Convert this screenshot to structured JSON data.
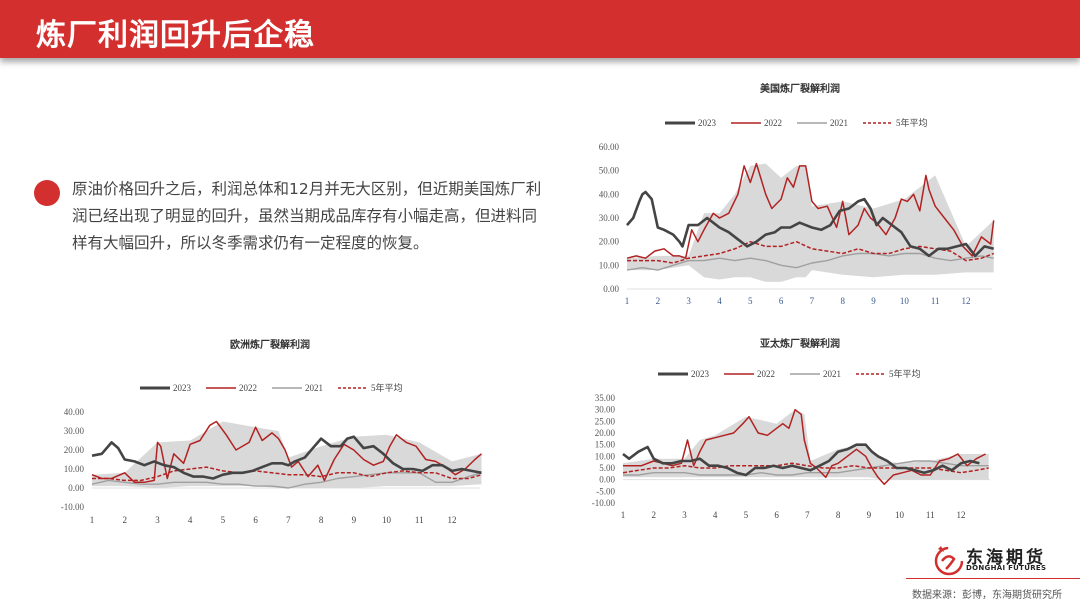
{
  "header": {
    "title": "炼厂利润回升后企稳"
  },
  "bullet": {
    "text": "原油价格回升之后，利润总体和12月并无大区别，但近期美国炼厂利润已经出现了明显的回升，虽然当期成品库存有小幅走高，但进料同样有大幅回升，所以冬季需求仍有一定程度的恢复。"
  },
  "colors": {
    "brand_red": "#d32f2f",
    "series_2023": "#444444",
    "series_2022": "#b22222",
    "series_2021": "#a0a0a0",
    "series_5yr_avg": "#b22222",
    "range_fill": "#d9d9d9"
  },
  "legend": {
    "s2023": "2023",
    "s2022": "2022",
    "s2021": "2021",
    "avg": "5年平均"
  },
  "footer": {
    "logo_cn": "东海期货",
    "logo_en": "DONGHAI FUTURES",
    "source": "数据来源：彭博，东海期货研究所"
  },
  "chart_data": [
    {
      "id": "us",
      "type": "line",
      "title": "美国炼厂裂解利润",
      "xlabel": "",
      "ylabel": "",
      "x_ticks": [
        "1",
        "2",
        "3",
        "4",
        "5",
        "6",
        "7",
        "8",
        "9",
        "10",
        "11",
        "12"
      ],
      "y_ticks": [
        "0.00",
        "10.00",
        "20.00",
        "30.00",
        "40.00",
        "50.00",
        "60.00"
      ],
      "ylim": [
        0,
        60
      ],
      "grid": false,
      "legend_position": "top",
      "series": [
        {
          "name": "2023",
          "x": [
            1,
            1.2,
            1.4,
            1.5,
            1.6,
            1.8,
            2.0,
            2.2,
            2.5,
            2.7,
            2.8,
            3.0,
            3.3,
            3.6,
            3.8,
            4.0,
            4.3,
            4.6,
            4.9,
            5.2,
            5.5,
            5.8,
            6.0,
            6.3,
            6.6,
            6.8,
            7.0,
            7.3,
            7.6,
            7.9,
            8.2,
            8.5,
            8.7,
            8.9,
            9.1,
            9.3,
            9.6,
            9.9,
            10.2,
            10.5,
            10.8,
            11.1,
            11.4,
            11.7,
            12.0,
            12.3,
            12.6,
            12.9
          ],
          "values": [
            27,
            30,
            37,
            40,
            41,
            38,
            26,
            25,
            23,
            20,
            18,
            27,
            27,
            30,
            28,
            26,
            24,
            21,
            18,
            20,
            23,
            24,
            26,
            26,
            28,
            27,
            26,
            25,
            27,
            33,
            34,
            37,
            38,
            34,
            27,
            30,
            27,
            24,
            18,
            17,
            14,
            17,
            17,
            18,
            19,
            14,
            18,
            17
          ]
        },
        {
          "name": "2022",
          "x": [
            1,
            1.3,
            1.6,
            1.9,
            2.2,
            2.5,
            2.7,
            2.9,
            3.1,
            3.3,
            3.5,
            3.8,
            4.0,
            4.3,
            4.6,
            4.8,
            5.0,
            5.2,
            5.5,
            5.7,
            6.0,
            6.2,
            6.4,
            6.6,
            6.8,
            7.0,
            7.2,
            7.5,
            7.8,
            8.0,
            8.2,
            8.5,
            8.7,
            8.9,
            9.1,
            9.4,
            9.7,
            9.9,
            10.1,
            10.3,
            10.5,
            10.7,
            10.8,
            11.0,
            11.3,
            11.6,
            11.9,
            12.2,
            12.5,
            12.8,
            12.9
          ],
          "values": [
            13,
            14,
            13,
            16,
            17,
            14,
            14,
            13,
            25,
            20,
            25,
            32,
            30,
            32,
            40,
            52,
            45,
            53,
            40,
            34,
            38,
            47,
            43,
            52,
            52,
            37,
            34,
            35,
            26,
            37,
            23,
            27,
            34,
            30,
            28,
            23,
            30,
            38,
            37,
            40,
            33,
            48,
            42,
            35,
            30,
            25,
            18,
            14,
            22,
            19,
            29
          ]
        },
        {
          "name": "2021",
          "x": [
            1,
            1.5,
            2,
            2.5,
            3,
            3.5,
            4,
            4.5,
            5,
            5.5,
            6,
            6.5,
            7,
            7.5,
            8,
            8.5,
            9,
            9.5,
            10,
            10.5,
            11,
            11.5,
            12,
            12.5,
            12.9
          ],
          "values": [
            8,
            9,
            8,
            10,
            12,
            12,
            13,
            12,
            13,
            12,
            10,
            9,
            11,
            12,
            14,
            15,
            15,
            14,
            15,
            15,
            13,
            12,
            13,
            14,
            13
          ]
        },
        {
          "name": "5年平均",
          "x": [
            1,
            1.5,
            2,
            2.5,
            3,
            3.5,
            4,
            4.5,
            5,
            5.5,
            6,
            6.5,
            7,
            7.5,
            8,
            8.5,
            9,
            9.5,
            10,
            10.5,
            11,
            11.5,
            12,
            12.5,
            12.9
          ],
          "values": [
            12,
            12,
            12,
            11,
            13,
            14,
            15,
            17,
            20,
            18,
            18,
            20,
            17,
            16,
            15,
            17,
            15,
            15,
            17,
            18,
            17,
            16,
            12,
            13,
            15
          ]
        }
      ],
      "range_band": {
        "x": [
          1,
          2,
          3,
          3.5,
          4,
          4.5,
          5,
          5.5,
          6,
          6.5,
          6.8,
          7,
          8,
          9,
          10,
          11,
          12,
          12.9
        ],
        "low": [
          8,
          8,
          10,
          5,
          4,
          5,
          5,
          3,
          3,
          5,
          5,
          8,
          6,
          5,
          6,
          6,
          7,
          7
        ],
        "high": [
          13,
          14,
          14,
          32,
          32,
          40,
          52,
          53,
          47,
          52,
          52,
          35,
          37,
          34,
          38,
          48,
          18,
          29
        ]
      }
    },
    {
      "id": "eu",
      "type": "line",
      "title": "欧洲炼厂裂解利润",
      "xlabel": "",
      "ylabel": "",
      "x_ticks": [
        "1",
        "2",
        "3",
        "4",
        "5",
        "6",
        "7",
        "8",
        "9",
        "10",
        "11",
        "12"
      ],
      "y_ticks": [
        "-10.00",
        "0.00",
        "10.00",
        "20.00",
        "30.00",
        "40.00"
      ],
      "ylim": [
        -10,
        40
      ],
      "grid": false,
      "legend_position": "top",
      "series": [
        {
          "name": "2023",
          "x": [
            1,
            1.3,
            1.6,
            1.8,
            2.0,
            2.3,
            2.6,
            2.9,
            3.2,
            3.5,
            3.8,
            4.1,
            4.4,
            4.7,
            5.0,
            5.3,
            5.6,
            5.9,
            6.2,
            6.5,
            6.8,
            7.0,
            7.2,
            7.5,
            7.8,
            8.0,
            8.3,
            8.6,
            8.8,
            9.0,
            9.3,
            9.6,
            9.9,
            10.2,
            10.5,
            10.8,
            11.1,
            11.4,
            11.7,
            12.0,
            12.3,
            12.6,
            12.9
          ],
          "values": [
            17,
            18,
            24,
            21,
            15,
            14,
            12,
            14,
            12,
            11,
            8,
            6,
            6,
            5,
            7,
            8,
            8,
            9,
            11,
            13,
            13,
            12,
            14,
            16,
            22,
            26,
            22,
            22,
            26,
            27,
            21,
            22,
            18,
            13,
            10,
            10,
            9,
            12,
            12,
            9,
            10,
            9,
            8
          ]
        },
        {
          "name": "2022",
          "x": [
            1,
            1.3,
            1.6,
            2.0,
            2.3,
            2.6,
            2.9,
            3.0,
            3.1,
            3.3,
            3.5,
            3.8,
            4.0,
            4.3,
            4.6,
            4.8,
            5.1,
            5.4,
            5.8,
            6.0,
            6.2,
            6.5,
            6.7,
            6.9,
            7.1,
            7.3,
            7.6,
            7.9,
            8.1,
            8.4,
            8.7,
            9.0,
            9.3,
            9.6,
            9.9,
            10.1,
            10.3,
            10.6,
            10.9,
            11.2,
            11.5,
            11.8,
            12.1,
            12.4,
            12.7,
            12.9
          ],
          "values": [
            7,
            5,
            5,
            8,
            3,
            3,
            4,
            24,
            22,
            5,
            18,
            13,
            23,
            25,
            33,
            35,
            28,
            20,
            24,
            32,
            25,
            29,
            26,
            20,
            11,
            14,
            6,
            12,
            4,
            15,
            23,
            20,
            15,
            12,
            14,
            22,
            28,
            24,
            22,
            15,
            14,
            11,
            7,
            10,
            15,
            18
          ]
        },
        {
          "name": "2021",
          "x": [
            1,
            1.5,
            2,
            2.5,
            3,
            3.5,
            4,
            4.5,
            5,
            5.5,
            6,
            6.5,
            7,
            7.5,
            8,
            8.5,
            9,
            9.5,
            10,
            10.5,
            11,
            11.5,
            12,
            12.5,
            12.9
          ],
          "values": [
            2,
            4,
            3,
            2,
            2,
            3,
            3,
            3,
            2,
            2,
            1,
            1,
            0,
            2,
            3,
            5,
            6,
            7,
            8,
            8,
            8,
            3,
            3,
            6,
            8
          ]
        },
        {
          "name": "5年平均",
          "x": [
            1,
            1.5,
            2,
            2.5,
            3,
            3.5,
            4,
            4.5,
            5,
            5.5,
            6,
            6.5,
            7,
            7.5,
            8,
            8.5,
            9,
            9.5,
            10,
            10.5,
            11,
            11.5,
            12,
            12.5,
            12.9
          ],
          "values": [
            5,
            5,
            4,
            4,
            6,
            9,
            10,
            11,
            9,
            8,
            9,
            8,
            7,
            7,
            6,
            8,
            8,
            6,
            8,
            9,
            8,
            8,
            5,
            5,
            7
          ]
        }
      ],
      "range_band": {
        "x": [
          1,
          2,
          3,
          4,
          5,
          6,
          6.7,
          7,
          8,
          9,
          10,
          11,
          12,
          12.9
        ],
        "low": [
          1,
          1,
          0,
          1,
          1,
          1,
          0,
          0,
          0,
          0,
          1,
          1,
          1,
          2
        ],
        "high": [
          7,
          8,
          24,
          25,
          35,
          32,
          30,
          16,
          22,
          27,
          28,
          24,
          14,
          18
        ]
      }
    },
    {
      "id": "apac",
      "type": "line",
      "title": "亚太炼厂裂解利润",
      "xlabel": "",
      "ylabel": "",
      "x_ticks": [
        "1",
        "2",
        "3",
        "4",
        "5",
        "6",
        "7",
        "8",
        "9",
        "10",
        "11",
        "12"
      ],
      "y_ticks": [
        "-10.00",
        "-5.00",
        "0.00",
        "5.00",
        "10.00",
        "15.00",
        "20.00",
        "25.00",
        "30.00",
        "35.00"
      ],
      "ylim": [
        -10,
        35
      ],
      "grid": false,
      "legend_position": "top",
      "series": [
        {
          "name": "2023",
          "x": [
            1,
            1.2,
            1.5,
            1.8,
            2.0,
            2.3,
            2.6,
            2.9,
            3.2,
            3.5,
            3.8,
            4.1,
            4.4,
            4.7,
            5.0,
            5.3,
            5.6,
            5.9,
            6.2,
            6.5,
            6.8,
            7.1,
            7.4,
            7.7,
            8.0,
            8.3,
            8.6,
            8.9,
            9.1,
            9.3,
            9.6,
            9.9,
            10.2,
            10.5,
            10.8,
            11.1,
            11.4,
            11.7,
            12.0,
            12.3,
            12.6
          ],
          "values": [
            11,
            9,
            12,
            14,
            9,
            7,
            7,
            8,
            8,
            9,
            6,
            6,
            5,
            3,
            2,
            5,
            5,
            6,
            5,
            6,
            5,
            4,
            6,
            8,
            12,
            13,
            15,
            15,
            12,
            10,
            8,
            5,
            5,
            4,
            3,
            4,
            6,
            4,
            7,
            8,
            7
          ]
        },
        {
          "name": "2022",
          "x": [
            1,
            1.3,
            1.6,
            2.0,
            2.3,
            2.6,
            2.9,
            3.1,
            3.3,
            3.5,
            3.7,
            4.0,
            4.3,
            4.6,
            4.9,
            5.1,
            5.4,
            5.7,
            6.0,
            6.2,
            6.4,
            6.6,
            6.8,
            6.9,
            7.1,
            7.3,
            7.6,
            7.8,
            8.0,
            8.3,
            8.6,
            8.9,
            9.1,
            9.3,
            9.5,
            9.8,
            10.1,
            10.4,
            10.7,
            11.0,
            11.3,
            11.6,
            11.9,
            12.2,
            12.5,
            12.8
          ],
          "values": [
            6,
            6,
            6,
            8,
            7,
            6,
            7,
            17,
            6,
            12,
            17,
            18,
            19,
            20,
            24,
            27,
            20,
            19,
            22,
            24,
            22,
            30,
            28,
            17,
            7,
            5,
            1,
            6,
            7,
            10,
            13,
            10,
            5,
            1,
            -2,
            2,
            3,
            4,
            2,
            2,
            8,
            9,
            11,
            6,
            9,
            11
          ]
        },
        {
          "name": "2021",
          "x": [
            1,
            1.5,
            2,
            2.5,
            3,
            3.5,
            4,
            4.5,
            5,
            5.5,
            6,
            6.5,
            7,
            7.5,
            8,
            8.5,
            9,
            9.5,
            10,
            10.5,
            11,
            11.5,
            12,
            12.5,
            12.9
          ],
          "values": [
            2,
            2,
            3,
            3,
            3,
            2,
            2,
            2,
            2,
            3,
            2,
            2,
            3,
            3,
            3,
            4,
            5,
            6,
            7,
            8,
            8,
            7,
            6,
            6,
            6
          ]
        },
        {
          "name": "5年平均",
          "x": [
            1,
            1.5,
            2,
            2.5,
            3,
            3.5,
            4,
            4.5,
            5,
            5.5,
            6,
            6.5,
            7,
            7.5,
            8,
            8.5,
            9,
            9.5,
            10,
            10.5,
            11,
            11.5,
            12,
            12.5,
            12.9
          ],
          "values": [
            3,
            4,
            5,
            5,
            6,
            5,
            5,
            6,
            6,
            6,
            6,
            7,
            6,
            5,
            5,
            6,
            5,
            5,
            5,
            5,
            5,
            4,
            3,
            4,
            5
          ]
        }
      ],
      "range_band": {
        "x": [
          1,
          2,
          3,
          3.5,
          4,
          5,
          6,
          6.6,
          6.9,
          7.1,
          8,
          8.7,
          9,
          9.5,
          10,
          11,
          12,
          12.9
        ],
        "low": [
          1,
          1,
          1,
          1,
          1,
          1,
          1,
          1,
          1,
          1,
          1,
          1,
          1,
          0,
          0,
          0,
          0,
          0
        ],
        "high": [
          7,
          9,
          9,
          17,
          19,
          27,
          24,
          30,
          28,
          8,
          13,
          15,
          14,
          8,
          7,
          8,
          11,
          11
        ]
      }
    }
  ]
}
